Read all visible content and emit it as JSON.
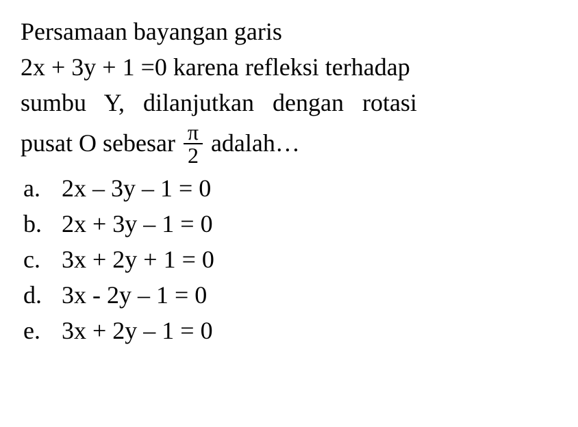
{
  "question": {
    "line1": "Persamaan bayangan garis",
    "line2": "2x + 3y + 1 =0 karena refleksi terhadap",
    "line3": "sumbu Y, dilanjutkan dengan rotasi",
    "line4_part1": "pusat O sebesar",
    "fraction_num": "π",
    "fraction_den": "2",
    "line4_part2": "adalah…"
  },
  "options": [
    {
      "letter": "a.",
      "text": "2x – 3y – 1 = 0"
    },
    {
      "letter": "b.",
      "text": "2x + 3y – 1 = 0"
    },
    {
      "letter": "c.",
      "text": "3x + 2y + 1 = 0"
    },
    {
      "letter": "d.",
      "text": "3x - 2y – 1 = 0"
    },
    {
      "letter": "e.",
      "text": "3x + 2y – 1 = 0"
    }
  ],
  "style": {
    "background_color": "#ffffff",
    "text_color": "#000000",
    "font_family": "Times New Roman",
    "font_size_pt": 27
  }
}
